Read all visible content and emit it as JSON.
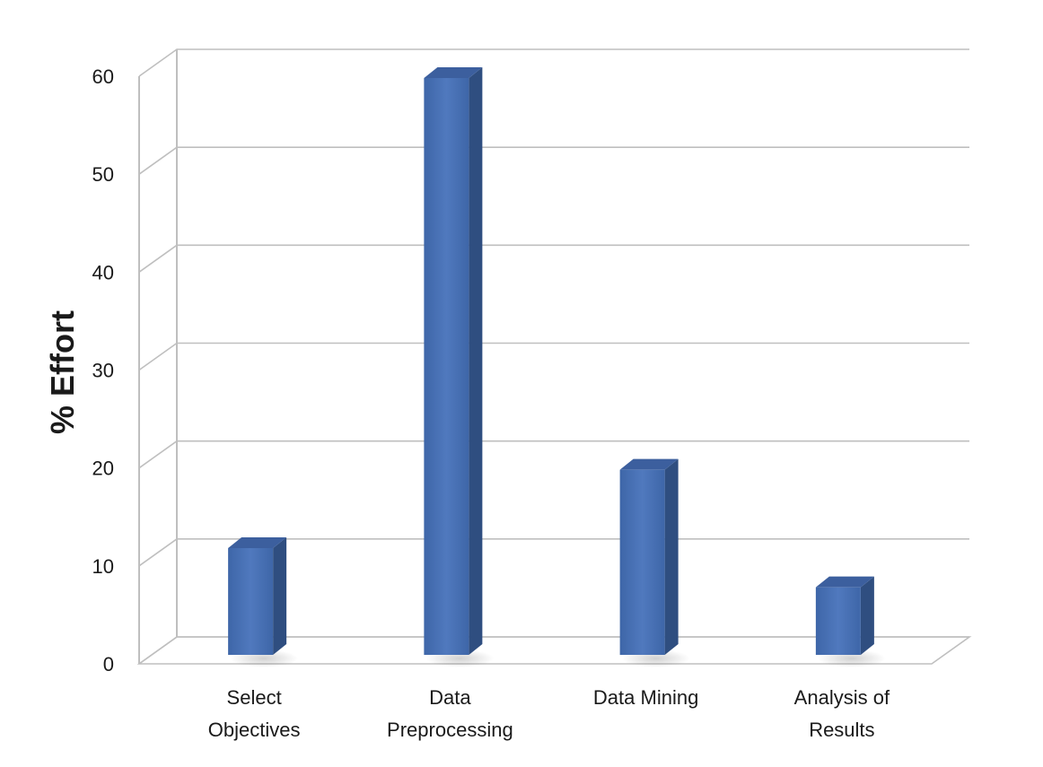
{
  "chart_data": {
    "type": "bar",
    "style": "3d-column",
    "ylabel": "% Effort",
    "xlabel": "",
    "categories": [
      [
        "Select",
        "Objectives"
      ],
      [
        "Data",
        "Preprocessing"
      ],
      [
        "Data Mining"
      ],
      [
        "Analysis of",
        "Results"
      ]
    ],
    "values": [
      12,
      60,
      20,
      8
    ],
    "ylim": [
      0,
      60
    ],
    "yticks": [
      0,
      10,
      20,
      30,
      40,
      50,
      60
    ],
    "grid": true,
    "legend": "none",
    "colors": {
      "bar_front": "#4A72B5",
      "bar_side": "#2F4E80",
      "bar_top": "#3C5F9E",
      "grid": "#BFBFBF",
      "text": "#1A1A1A"
    }
  }
}
